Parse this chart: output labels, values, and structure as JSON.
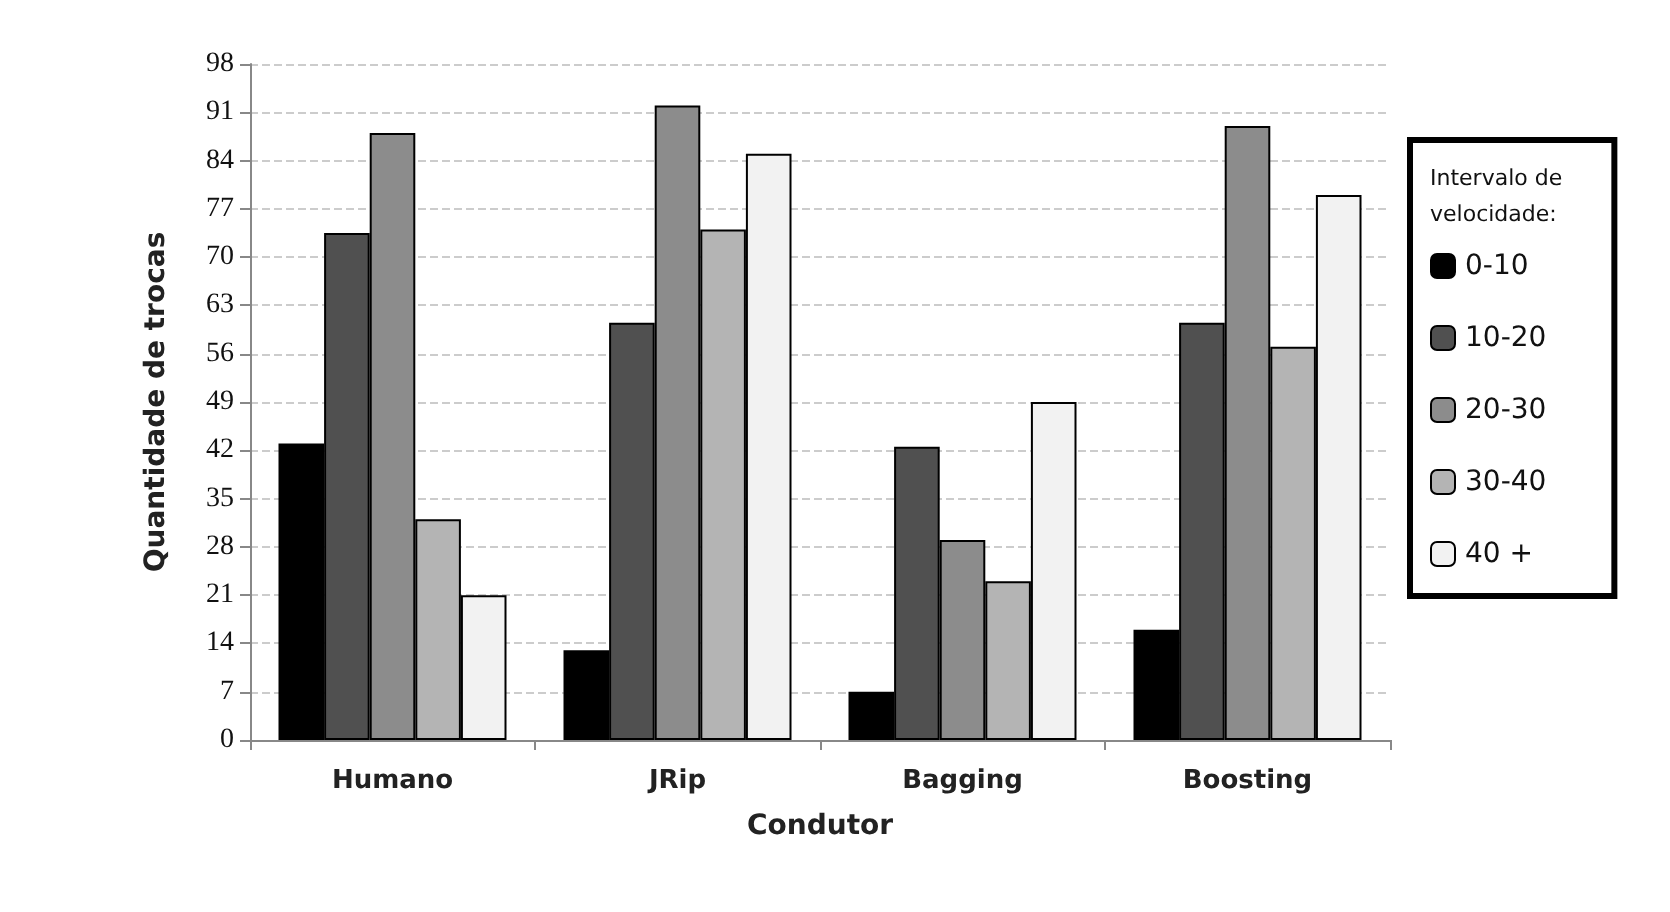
{
  "chart_data": {
    "type": "bar",
    "xlabel": "Condutor",
    "ylabel": "Quantidade de trocas",
    "legend_title": "Intervalo de\nvelocidade:",
    "categories": [
      "Humano",
      "JRip",
      "Bagging",
      "Boosting"
    ],
    "series": [
      {
        "name": "0-10",
        "color": "#000000",
        "values": [
          43,
          13,
          7,
          16
        ]
      },
      {
        "name": "10-20",
        "color": "#505050",
        "values": [
          73.5,
          60.5,
          42.5,
          60.5
        ]
      },
      {
        "name": "20-30",
        "color": "#8c8c8c",
        "values": [
          88,
          92,
          29,
          89
        ]
      },
      {
        "name": "30-40",
        "color": "#b4b4b4",
        "values": [
          32,
          74,
          23,
          57
        ]
      },
      {
        "name": "40 +",
        "color": "#f2f2f2",
        "values": [
          21,
          85,
          49,
          79
        ]
      }
    ],
    "ylim": [
      0,
      98
    ],
    "yticks": [
      0,
      7,
      14,
      21,
      28,
      35,
      42,
      49,
      56,
      63,
      70,
      77,
      84,
      91,
      98
    ],
    "grid": "y",
    "legend": "right"
  }
}
